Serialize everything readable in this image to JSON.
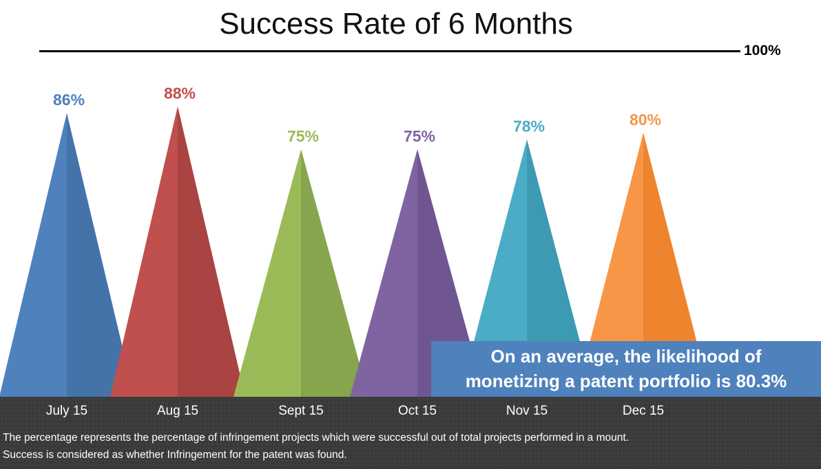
{
  "chart_data": {
    "type": "bar",
    "title": "Success Rate of 6 Months",
    "categories": [
      "July 15",
      "Aug 15",
      "Sept 15",
      "Oct 15",
      "Nov 15",
      "Dec 15"
    ],
    "values": [
      86,
      88,
      75,
      75,
      78,
      80
    ],
    "data_labels": [
      "86%",
      "88%",
      "75%",
      "75%",
      "78%",
      "80%"
    ],
    "ylim": [
      0,
      100
    ],
    "reference_line": {
      "value": 100,
      "label": "100%"
    },
    "colors": [
      {
        "light": "#4f81bd",
        "dark": "#4473aa"
      },
      {
        "light": "#c0504d",
        "dark": "#a94442"
      },
      {
        "light": "#9bbb59",
        "dark": "#87a54c"
      },
      {
        "light": "#8064a2",
        "dark": "#6f5690"
      },
      {
        "light": "#4bacc6",
        "dark": "#3d9ab3"
      },
      {
        "light": "#f79646",
        "dark": "#ee842e"
      }
    ],
    "bar_shape": "triangle"
  },
  "callout": {
    "line1": "On an average, the likelihood of",
    "line2": "monetizing a patent portfolio is 80.3%"
  },
  "footnote": {
    "line1": "The percentage represents the percentage of infringement projects which were successful out of total projects performed in a mount.",
    "line2": "Success is considered as whether Infringement for the patent was found."
  }
}
